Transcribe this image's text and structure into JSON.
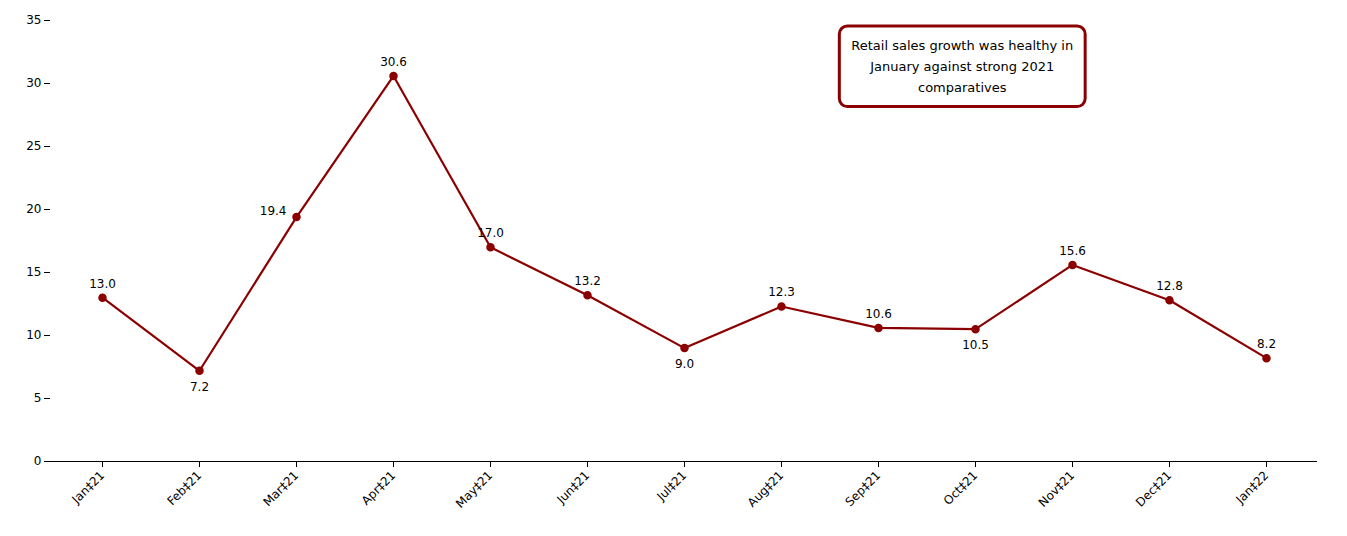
{
  "chart_data": {
    "type": "line",
    "categories": [
      "Jan‡21",
      "Feb‡21",
      "Mar‡21",
      "Apr‡21",
      "May‡21",
      "Jun‡21",
      "Jul‡21",
      "Aug‡21",
      "Sep‡21",
      "Oct‡21",
      "Nov‡21",
      "Dec‡21",
      "Jan‡22"
    ],
    "values": [
      13.0,
      7.2,
      19.4,
      30.6,
      17.0,
      13.2,
      9.0,
      12.3,
      10.6,
      10.5,
      15.6,
      12.8,
      8.2
    ],
    "value_labels": [
      "13.0",
      "7.2",
      "19.4",
      "30.6",
      "17.0",
      "13.2",
      "9.0",
      "12.3",
      "10.6",
      "10.5",
      "15.6",
      "12.8",
      "8.2"
    ],
    "data_labels": true,
    "color": "#8B0000",
    "marker": "circle",
    "ylim": [
      0,
      35
    ],
    "yticks": [
      0,
      5,
      10,
      15,
      20,
      25,
      30,
      35
    ],
    "grid": false,
    "annotation": "Retail sales growth was healthy in\nJanuary against strong 2021\ncomparatives"
  }
}
